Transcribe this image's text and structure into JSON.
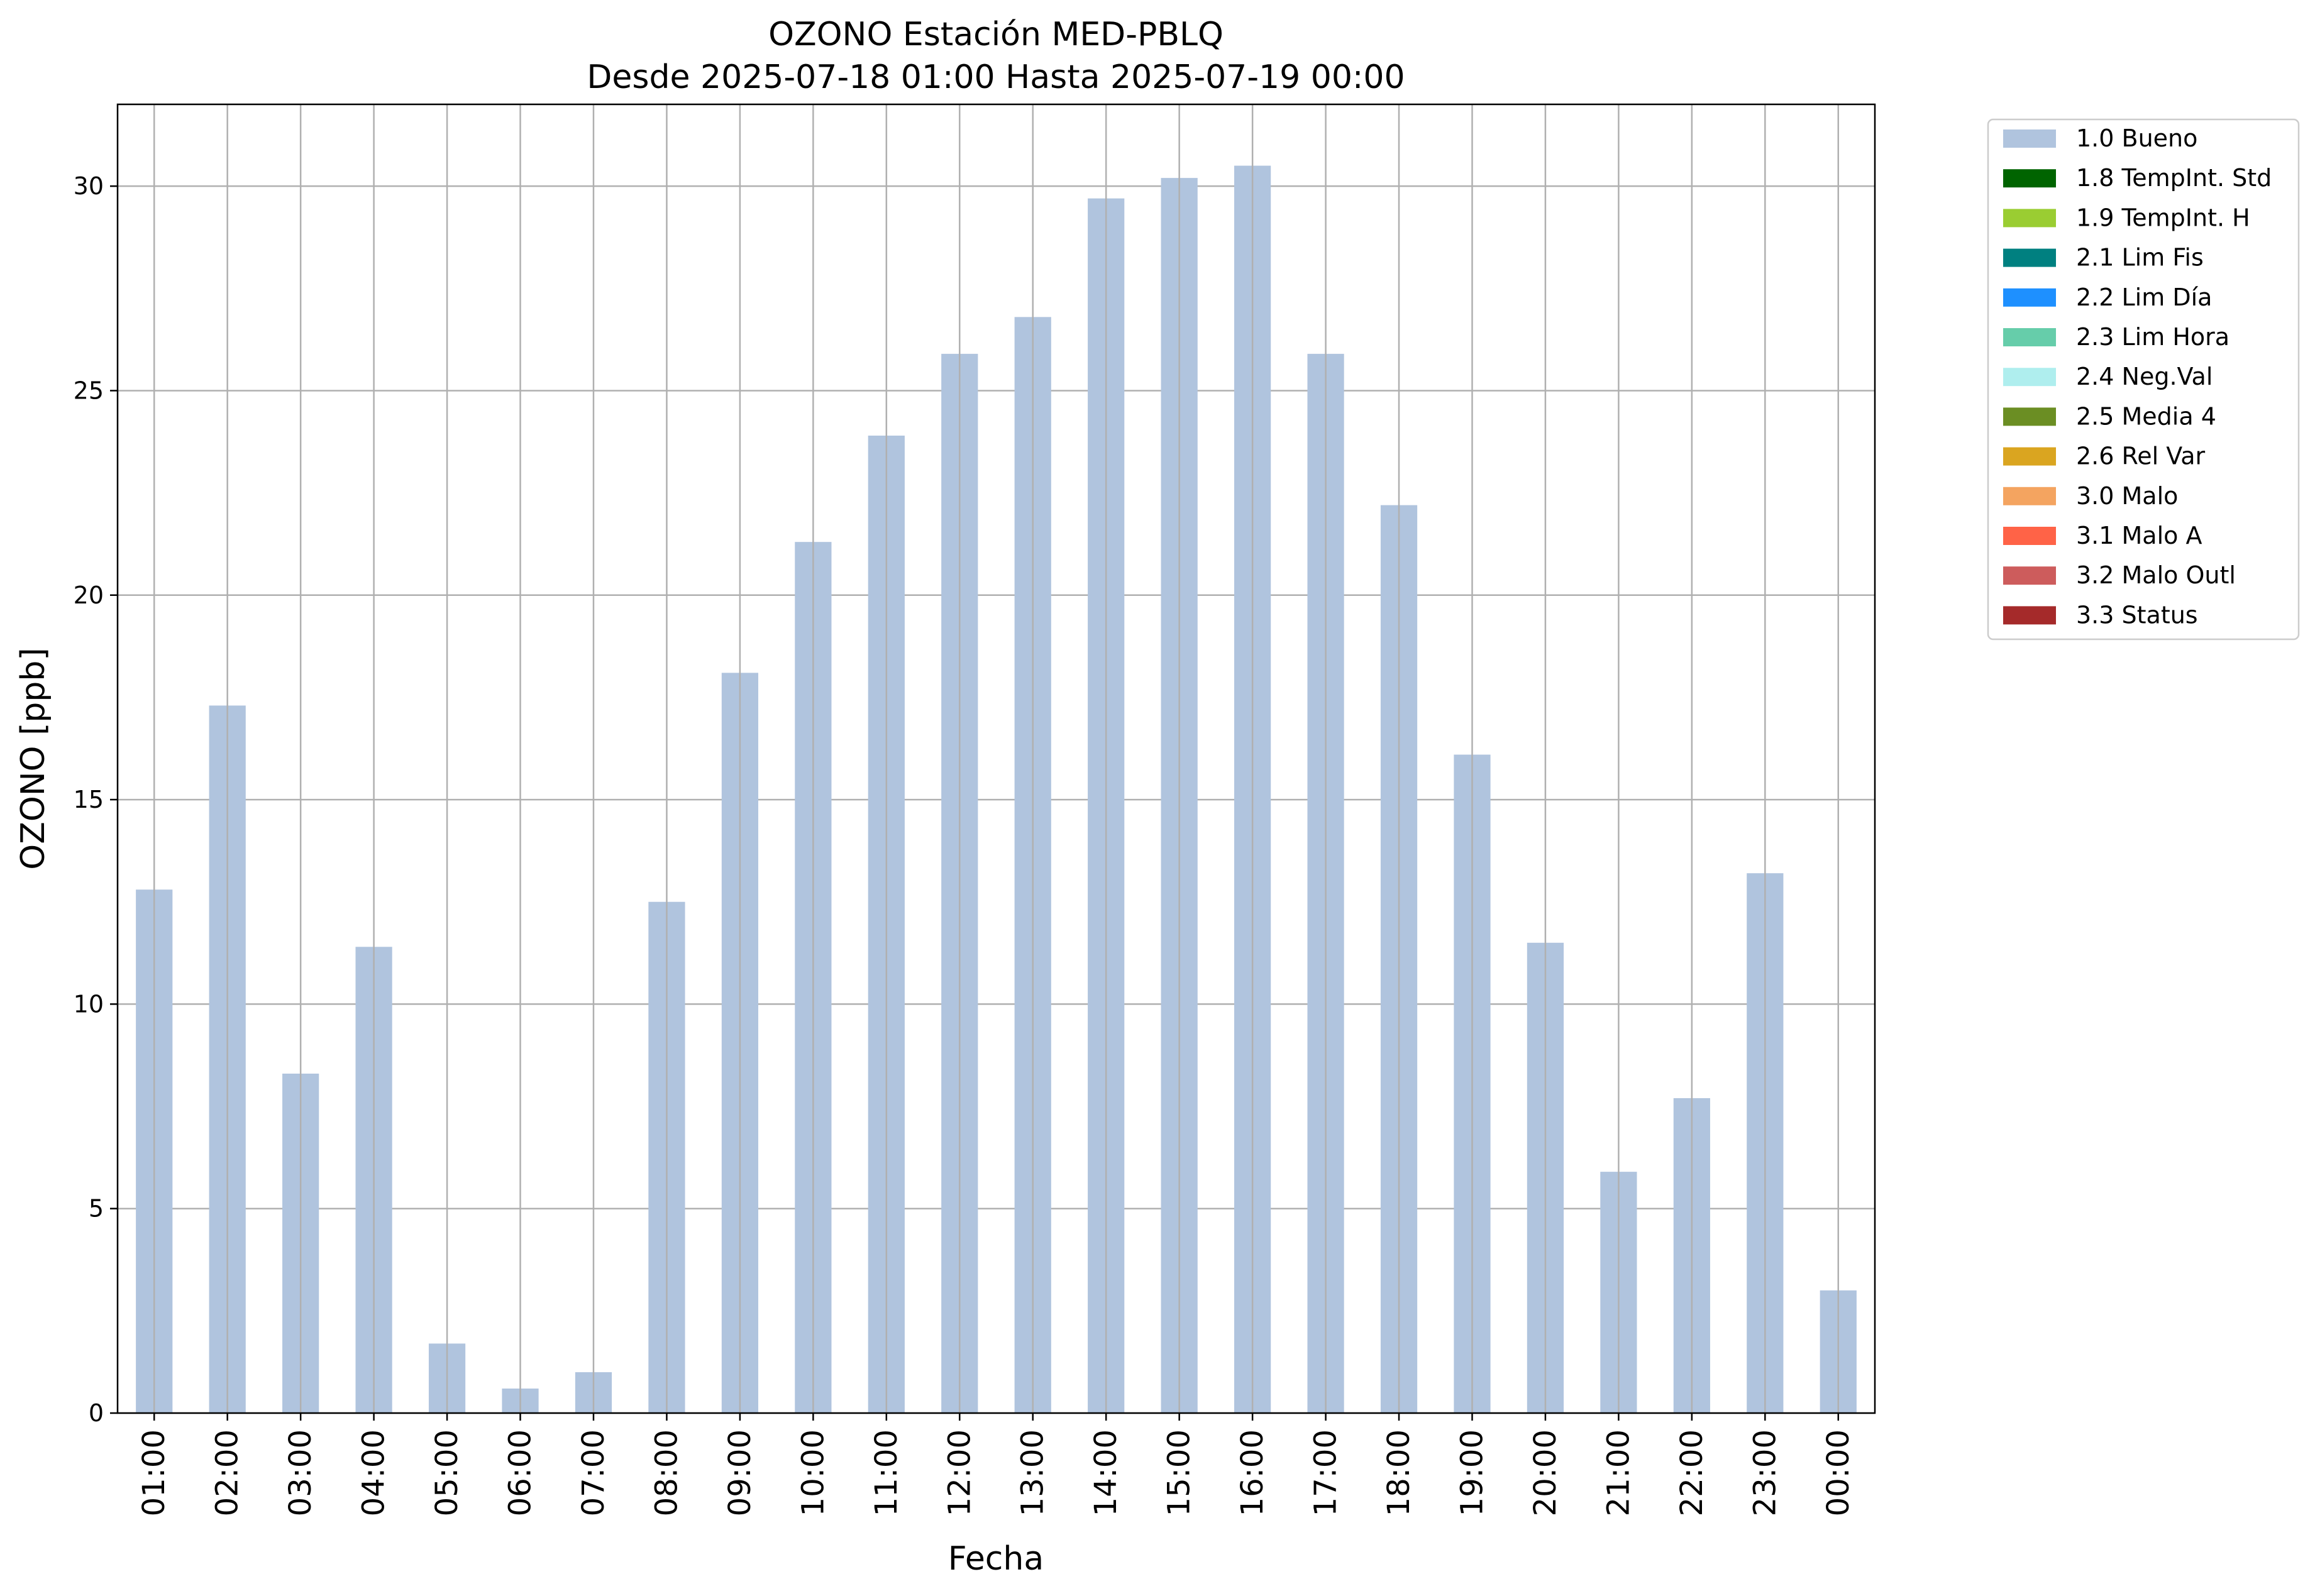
{
  "chart_data": {
    "type": "bar",
    "title": "OZONO Estación MED-PBLQ",
    "subtitle": "Desde 2025-07-18 01:00 Hasta 2025-07-19 00:00",
    "xlabel": "Fecha",
    "ylabel": "OZONO [ppb]",
    "ylim": [
      0,
      32
    ],
    "yticks": [
      0,
      5,
      10,
      15,
      20,
      25,
      30
    ],
    "grid": true,
    "legend_position": "outside-top-right",
    "categories": [
      "01:00",
      "02:00",
      "03:00",
      "04:00",
      "05:00",
      "06:00",
      "07:00",
      "08:00",
      "09:00",
      "10:00",
      "11:00",
      "12:00",
      "13:00",
      "14:00",
      "15:00",
      "16:00",
      "17:00",
      "18:00",
      "19:00",
      "20:00",
      "21:00",
      "22:00",
      "23:00",
      "00:00"
    ],
    "series": [
      {
        "name": "1.0 Bueno",
        "color": "#b0c4de",
        "values": [
          12.8,
          17.3,
          8.3,
          11.4,
          1.7,
          0.6,
          1.0,
          12.5,
          18.1,
          21.3,
          23.9,
          25.9,
          26.8,
          29.7,
          30.2,
          30.5,
          25.9,
          22.2,
          16.1,
          11.5,
          5.9,
          7.7,
          13.2,
          3.0
        ]
      }
    ],
    "legend": [
      {
        "label": "1.0 Bueno",
        "color": "#b0c4de"
      },
      {
        "label": "1.8 TempInt. Std",
        "color": "#006400"
      },
      {
        "label": "1.9 TempInt. H",
        "color": "#9acd32"
      },
      {
        "label": "2.1 Lim Fis",
        "color": "#008080"
      },
      {
        "label": "2.2 Lim Día",
        "color": "#1e90ff"
      },
      {
        "label": "2.3 Lim Hora",
        "color": "#66cdaa"
      },
      {
        "label": "2.4 Neg.Val",
        "color": "#afeeee"
      },
      {
        "label": "2.5 Media 4",
        "color": "#6b8e23"
      },
      {
        "label": "2.6 Rel Var",
        "color": "#daa520"
      },
      {
        "label": "3.0 Malo",
        "color": "#f4a460"
      },
      {
        "label": "3.1 Malo A",
        "color": "#ff6347"
      },
      {
        "label": "3.2 Malo Outl",
        "color": "#cd5c5c"
      },
      {
        "label": "3.3 Status",
        "color": "#a52a2a"
      }
    ]
  }
}
